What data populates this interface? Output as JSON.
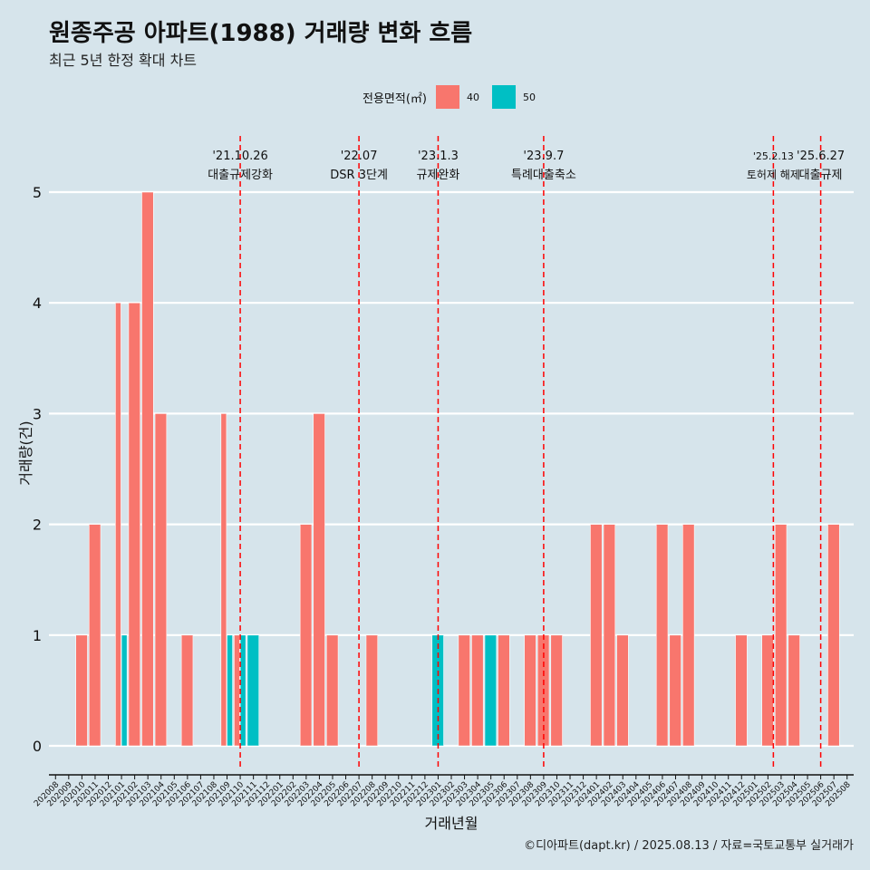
{
  "title": "원종주공 아파트(1988) 거래량 변화 흐름",
  "subtitle": "최근 5년 한정 확대 차트",
  "legend": {
    "title": "전용면적(㎡)",
    "items": [
      {
        "label": "40",
        "color": "#f8766d"
      },
      {
        "label": "50",
        "color": "#00bfc4"
      }
    ]
  },
  "caption": "©디아파트(dapt.kr) / 2025.08.13 / 자료=국토교통부 실거래가",
  "chart_data": {
    "type": "bar",
    "title": "원종주공 아파트(1988) 거래량 변화 흐름",
    "xlabel": "거래년월",
    "ylabel": "거래량(건)",
    "ylim": [
      0,
      5
    ],
    "yticks": [
      0,
      1,
      2,
      3,
      4,
      5
    ],
    "grid": true,
    "legend_position": "top",
    "categories": [
      "202008",
      "202009",
      "202010",
      "202011",
      "202012",
      "202101",
      "202102",
      "202103",
      "202104",
      "202105",
      "202106",
      "202107",
      "202108",
      "202109",
      "202110",
      "202111",
      "202112",
      "202201",
      "202202",
      "202203",
      "202204",
      "202205",
      "202206",
      "202207",
      "202208",
      "202209",
      "202210",
      "202211",
      "202212",
      "202301",
      "202302",
      "202303",
      "202304",
      "202305",
      "202306",
      "202307",
      "202308",
      "202309",
      "202310",
      "202311",
      "202312",
      "202401",
      "202402",
      "202403",
      "202404",
      "202405",
      "202406",
      "202407",
      "202408",
      "202409",
      "202410",
      "202411",
      "202412",
      "202501",
      "202502",
      "202503",
      "202504",
      "202505",
      "202506",
      "202507",
      "202508"
    ],
    "bars": [
      {
        "month": "202010",
        "size": "40",
        "value": 1
      },
      {
        "month": "202011",
        "size": "40",
        "value": 2
      },
      {
        "month": "202101",
        "size": "40",
        "value": 4
      },
      {
        "month": "202101",
        "size": "50",
        "value": 1
      },
      {
        "month": "202102",
        "size": "40",
        "value": 4
      },
      {
        "month": "202103",
        "size": "40",
        "value": 5
      },
      {
        "month": "202104",
        "size": "40",
        "value": 3
      },
      {
        "month": "202106",
        "size": "40",
        "value": 1
      },
      {
        "month": "202109",
        "size": "40",
        "value": 3
      },
      {
        "month": "202109",
        "size": "50",
        "value": 1
      },
      {
        "month": "202110",
        "size": "40",
        "value": 1
      },
      {
        "month": "202110",
        "size": "50",
        "value": 1
      },
      {
        "month": "202111",
        "size": "50",
        "value": 1
      },
      {
        "month": "202203",
        "size": "40",
        "value": 2
      },
      {
        "month": "202204",
        "size": "40",
        "value": 3
      },
      {
        "month": "202205",
        "size": "40",
        "value": 1
      },
      {
        "month": "202208",
        "size": "40",
        "value": 1
      },
      {
        "month": "202301",
        "size": "50",
        "value": 1
      },
      {
        "month": "202303",
        "size": "40",
        "value": 1
      },
      {
        "month": "202304",
        "size": "40",
        "value": 1
      },
      {
        "month": "202305",
        "size": "50",
        "value": 1
      },
      {
        "month": "202306",
        "size": "40",
        "value": 1
      },
      {
        "month": "202308",
        "size": "40",
        "value": 1
      },
      {
        "month": "202309",
        "size": "40",
        "value": 1
      },
      {
        "month": "202310",
        "size": "40",
        "value": 1
      },
      {
        "month": "202401",
        "size": "40",
        "value": 2
      },
      {
        "month": "202402",
        "size": "40",
        "value": 2
      },
      {
        "month": "202403",
        "size": "40",
        "value": 1
      },
      {
        "month": "202406",
        "size": "40",
        "value": 2
      },
      {
        "month": "202407",
        "size": "40",
        "value": 1
      },
      {
        "month": "202408",
        "size": "40",
        "value": 2
      },
      {
        "month": "202412",
        "size": "40",
        "value": 1
      },
      {
        "month": "202502",
        "size": "40",
        "value": 1
      },
      {
        "month": "202503",
        "size": "40",
        "value": 2
      },
      {
        "month": "202504",
        "size": "40",
        "value": 1
      },
      {
        "month": "202507",
        "size": "40",
        "value": 2
      }
    ],
    "annotations": [
      {
        "date": "'21.10.26",
        "label": "대출규제강화",
        "month": "202110"
      },
      {
        "date": "'22.07",
        "label": "DSR 3단계",
        "month": "202207"
      },
      {
        "date": "'23.1.3",
        "label": "규제완화",
        "month": "202301"
      },
      {
        "date": "'23.9.7",
        "label": "특례대출축소",
        "month": "202309"
      },
      {
        "date": "'25.2.13",
        "label": "토허제 해제",
        "month": "202502"
      },
      {
        "date": "'25.6.27",
        "label": "대출규제",
        "month": "202506"
      }
    ],
    "colors": {
      "40": "#f8766d",
      "50": "#00bfc4",
      "annotation_line": "#ff0000"
    }
  }
}
